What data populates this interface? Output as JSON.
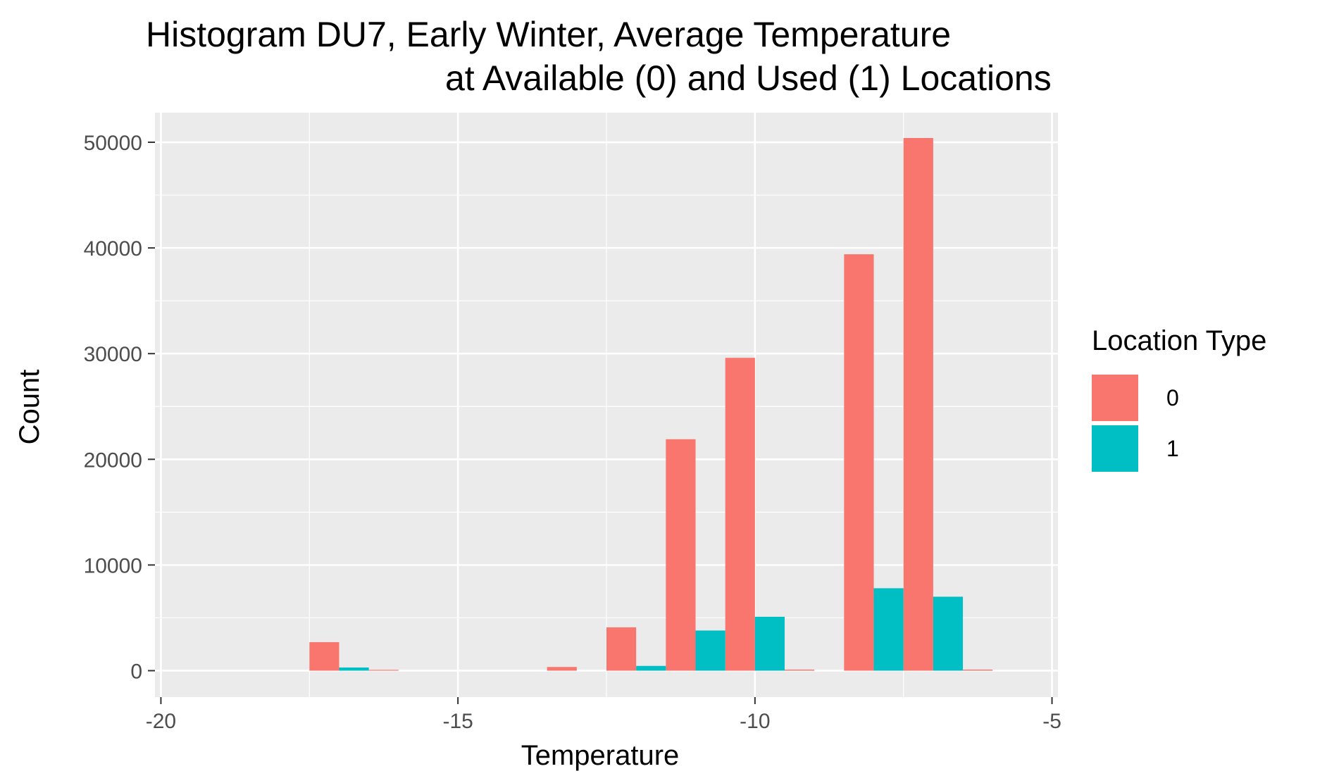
{
  "chart_data": {
    "type": "bar",
    "title": "Histogram DU7, Early Winter, Average Temperature",
    "subtitle": "at Available (0) and Used (1) Locations",
    "xlabel": "Temperature",
    "ylabel": "Count",
    "xlim": [
      -20.1,
      -4.9
    ],
    "ylim": [
      -2500,
      52800
    ],
    "x_ticks": [
      -20,
      -15,
      -10,
      -5
    ],
    "y_ticks": [
      0,
      10000,
      20000,
      30000,
      40000,
      50000
    ],
    "x_tick_labels": [
      "-20",
      "-15",
      "-10",
      "-5"
    ],
    "y_tick_labels": [
      "0",
      "10000",
      "20000",
      "30000",
      "40000",
      "50000"
    ],
    "bin_width": 1,
    "bin_centers": [
      -20,
      -19,
      -18,
      -17,
      -16,
      -15,
      -14,
      -13,
      -12,
      -11,
      -10,
      -9,
      -8,
      -7,
      -6
    ],
    "series": [
      {
        "name": "0",
        "color": "#F8766D",
        "values": [
          0,
          0,
          0,
          2700,
          80,
          0,
          0,
          350,
          4100,
          21900,
          29600,
          100,
          39400,
          50400,
          100
        ]
      },
      {
        "name": "1",
        "color": "#00BFC4",
        "values": [
          0,
          0,
          0,
          300,
          0,
          0,
          0,
          0,
          450,
          3800,
          5100,
          0,
          7800,
          7000,
          0
        ]
      }
    ],
    "grid": true,
    "panel_background": "#EBEBEB",
    "legend": {
      "title": "Location Type",
      "position": "right"
    }
  }
}
